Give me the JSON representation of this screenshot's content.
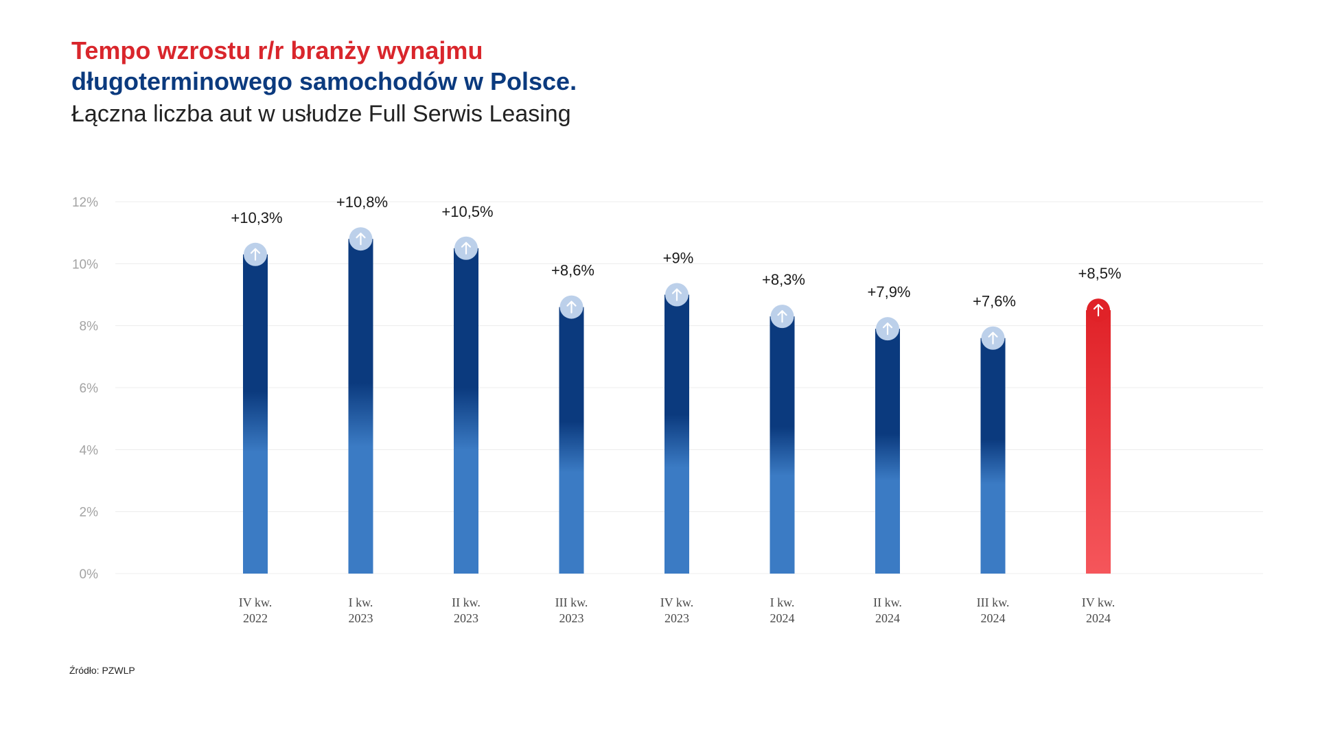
{
  "header": {
    "title_line1": "Tempo wzrostu r/r branży wynajmu",
    "title_line2": "długoterminowego samochodów w Polsce.",
    "subtitle": "Łączna liczba aut w usłudze Full Serwis Leasing"
  },
  "footer": {
    "source": "Źródło: PZWLP"
  },
  "colors": {
    "bar_dark": "#0b3a7e",
    "bar_light": "#3b7bc4",
    "highlight_top": "#e02228",
    "highlight_bottom": "#f5565b",
    "marker_fill": "#bcd0ea",
    "grid": "#ececec"
  },
  "chart_data": {
    "type": "bar",
    "categories": [
      [
        "IV kw.",
        "2022"
      ],
      [
        "I kw.",
        "2023"
      ],
      [
        "II kw.",
        "2023"
      ],
      [
        "III kw.",
        "2023"
      ],
      [
        "IV kw.",
        "2023"
      ],
      [
        "I kw.",
        "2024"
      ],
      [
        "II kw.",
        "2024"
      ],
      [
        "III kw.",
        "2024"
      ],
      [
        "IV kw.",
        "2024"
      ]
    ],
    "values": [
      10.3,
      10.8,
      10.5,
      8.6,
      9.0,
      8.3,
      7.9,
      7.6,
      8.5
    ],
    "data_labels": [
      "+10,3%",
      "+10,8%",
      "+10,5%",
      "+8,6%",
      "+9%",
      "+8,3%",
      "+7,9%",
      "+7,6%",
      "+8,5%"
    ],
    "highlight_index": 8,
    "marker_icon": "arrow-up-icon",
    "ylim": [
      0,
      12
    ],
    "yticks": [
      0,
      2,
      4,
      6,
      8,
      10,
      12
    ],
    "ytick_labels": [
      "0%",
      "2%",
      "4%",
      "6%",
      "8%",
      "10%",
      "12%"
    ],
    "grid": true,
    "legend": "none"
  }
}
